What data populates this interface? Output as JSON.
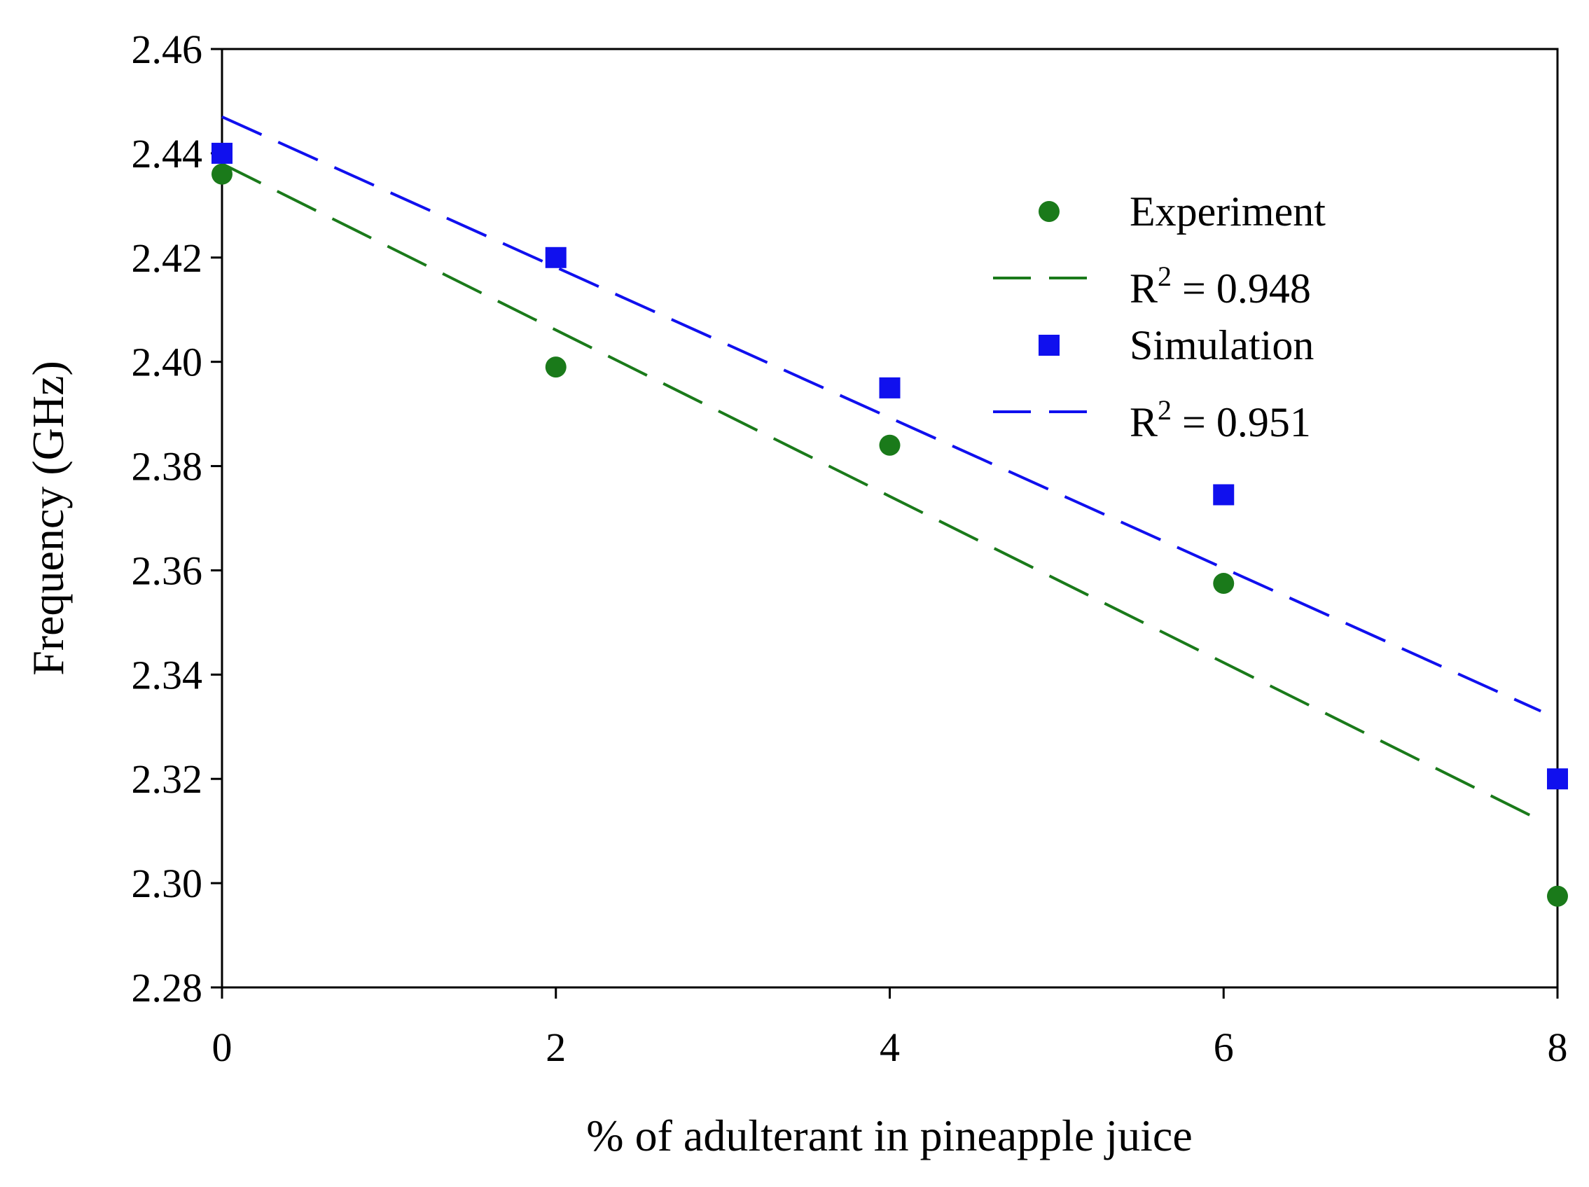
{
  "chart_data": {
    "type": "scatter",
    "title": "",
    "xlabel": "% of adulterant in pineapple juice",
    "ylabel": "Frequency (GHz)",
    "xlim": [
      0,
      8
    ],
    "ylim": [
      2.28,
      2.46
    ],
    "x_ticks": [
      0,
      2,
      4,
      6,
      8
    ],
    "x_tick_labels": [
      "0",
      "2",
      "4",
      "6",
      "8"
    ],
    "y_ticks": [
      2.28,
      2.3,
      2.32,
      2.34,
      2.36,
      2.38,
      2.4,
      2.42,
      2.44,
      2.46
    ],
    "y_tick_labels": [
      "2.28",
      "2.30",
      "2.32",
      "2.34",
      "2.36",
      "2.38",
      "2.40",
      "2.42",
      "2.44",
      "2.46"
    ],
    "grid": false,
    "legend_position": "top-right",
    "series": [
      {
        "name": "Experiment",
        "marker": "circle",
        "color": "#1a7a1a",
        "x": [
          0,
          2,
          4,
          6,
          8
        ],
        "y": [
          2.436,
          2.399,
          2.384,
          2.3575,
          2.2975
        ],
        "fit": {
          "x": [
            0,
            7.9
          ],
          "y": [
            2.438,
            2.312
          ],
          "dash": "long"
        },
        "fit_label_base": "R",
        "fit_label_sup": "2",
        "fit_label_rest": " = 0.948"
      },
      {
        "name": "Simulation",
        "marker": "square",
        "color": "#1010ee",
        "x": [
          0,
          2,
          4,
          6,
          8
        ],
        "y": [
          2.44,
          2.42,
          2.395,
          2.3745,
          2.32
        ],
        "fit": {
          "x": [
            0,
            7.9
          ],
          "y": [
            2.447,
            2.333
          ],
          "dash": "long"
        },
        "fit_label_base": "R",
        "fit_label_sup": "2",
        "fit_label_rest": " = 0.951"
      }
    ]
  }
}
